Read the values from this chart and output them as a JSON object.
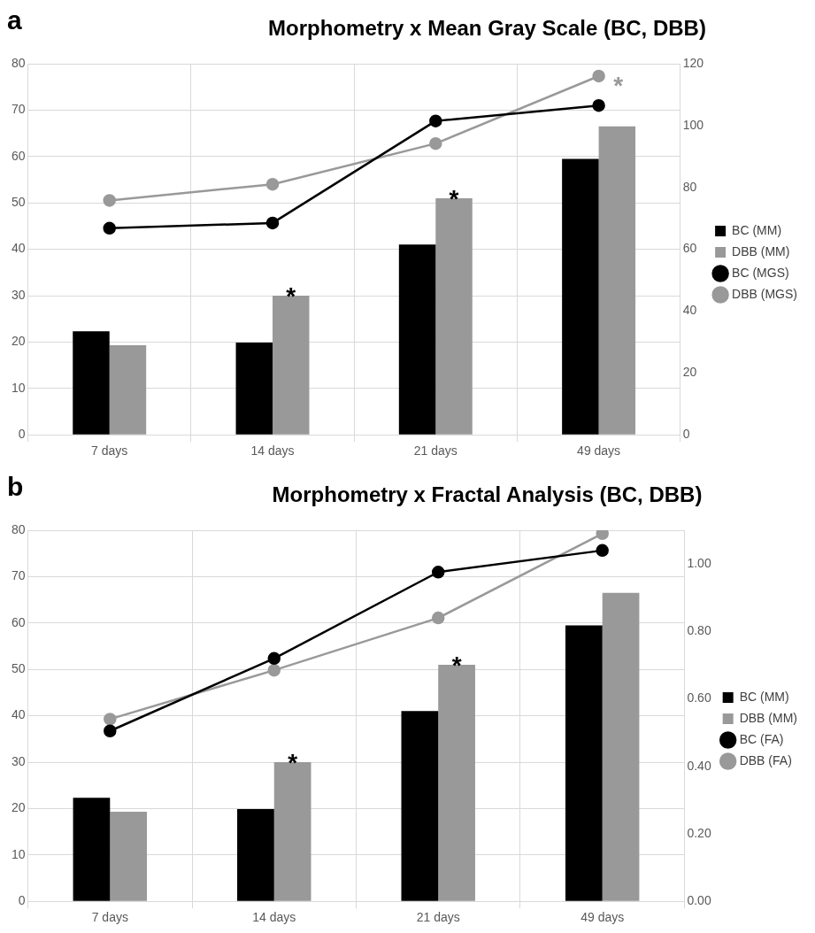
{
  "chart_data": [
    {
      "type": "bar",
      "title": "Morphometry x Mean Gray Scale (BC, DBB)",
      "categories": [
        "7 days",
        "14 days",
        "21 days",
        "49 days"
      ],
      "series": [
        {
          "name": "BC (MM)",
          "color": "#000000",
          "values": [
            22.3,
            19.9,
            41,
            59.5
          ]
        },
        {
          "name": "DBB (MM)",
          "color": "#999999",
          "values": [
            19.3,
            30,
            51,
            66.5
          ]
        },
        {
          "name": "BC (MGS)",
          "type": "line",
          "axis": "y2",
          "color": "#000000",
          "values": [
            66.8,
            68.5,
            101.5,
            106.5
          ]
        },
        {
          "name": "DBB (MGS)",
          "type": "line",
          "axis": "y2",
          "color": "#999999",
          "values": [
            75.8,
            81,
            94.2,
            116
          ]
        }
      ],
      "ylim": [
        0,
        80
      ],
      "yticks": [
        0,
        10,
        20,
        30,
        40,
        50,
        60,
        70,
        80
      ],
      "y2lim": [
        0,
        120
      ],
      "y2ticks": [
        0,
        20,
        40,
        60,
        80,
        100,
        120
      ],
      "grid": true,
      "legend": "right",
      "marker": "circle",
      "annotations": [
        "a",
        {
          "text": "*",
          "x": "14 days",
          "y": 30
        },
        {
          "text": "*",
          "x": "21 days",
          "y": 51
        },
        {
          "text": "*",
          "x": "49 days",
          "y": 77.3
        }
      ]
    },
    {
      "type": "bar",
      "title": "Morphometry x Fractal Analysis (BC, DBB)",
      "categories": [
        "7 days",
        "14 days",
        "21 days",
        "49 days"
      ],
      "series": [
        {
          "name": "BC (MM)",
          "color": "#000000",
          "values": [
            22.3,
            19.9,
            41,
            59.5
          ]
        },
        {
          "name": "DBB (MM)",
          "color": "#999999",
          "values": [
            19.3,
            30,
            51,
            66.5
          ]
        },
        {
          "name": "BC (FA)",
          "type": "line",
          "axis": "y2",
          "color": "#000000",
          "values": [
            0.505,
            0.72,
            0.976,
            1.04
          ]
        },
        {
          "name": "DBB (FA)",
          "type": "line",
          "axis": "y2",
          "color": "#999999",
          "values": [
            0.54,
            0.685,
            0.84,
            1.09
          ]
        }
      ],
      "ylim": [
        0,
        80
      ],
      "yticks": [
        0,
        10,
        20,
        30,
        40,
        50,
        60,
        70,
        80
      ],
      "y2lim": [
        0,
        1.1
      ],
      "y2ticks": [
        {
          "value": 0,
          "label": "0.00"
        },
        {
          "value": 0.2,
          "label": "0.20"
        },
        {
          "value": 0.4,
          "label": "0.40"
        },
        {
          "value": 0.6,
          "label": "0.60"
        },
        {
          "value": 0.8,
          "label": "0.80"
        },
        {
          "value": 1,
          "label": "1.00"
        }
      ],
      "grid": true,
      "legend": "right",
      "marker": "circle",
      "annotations": [
        "b",
        {
          "text": "*",
          "x": "14 days",
          "y": 30
        },
        {
          "text": "*",
          "x": "21 days",
          "y": 51
        }
      ]
    }
  ]
}
